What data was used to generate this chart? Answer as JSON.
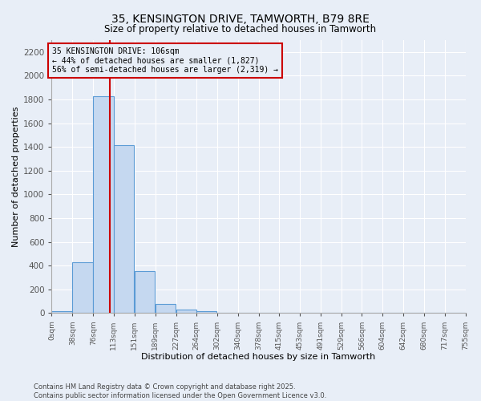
{
  "title": "35, KENSINGTON DRIVE, TAMWORTH, B79 8RE",
  "subtitle": "Size of property relative to detached houses in Tamworth",
  "xlabel": "Distribution of detached houses by size in Tamworth",
  "ylabel": "Number of detached properties",
  "footnote1": "Contains HM Land Registry data © Crown copyright and database right 2025.",
  "footnote2": "Contains public sector information licensed under the Open Government Licence v3.0.",
  "annotation_title": "35 KENSINGTON DRIVE: 106sqm",
  "annotation_line1": "← 44% of detached houses are smaller (1,827)",
  "annotation_line2": "56% of semi-detached houses are larger (2,319) →",
  "property_size": 106,
  "bar_left_edges": [
    0,
    38,
    76,
    113,
    151,
    189,
    227,
    264,
    302,
    340,
    378,
    415,
    453,
    491,
    529,
    566,
    604,
    642,
    680,
    717
  ],
  "bar_heights": [
    15,
    430,
    1830,
    1415,
    355,
    80,
    30,
    15,
    0,
    0,
    0,
    0,
    0,
    0,
    0,
    0,
    0,
    0,
    0,
    0
  ],
  "bin_width": 37,
  "bar_color": "#c5d8f0",
  "bar_edge_color": "#5b9bd5",
  "line_color": "#cc0000",
  "bg_color": "#e8eef7",
  "grid_color": "#ffffff",
  "annotation_box_color": "#cc0000",
  "ylim": [
    0,
    2300
  ],
  "yticks": [
    0,
    200,
    400,
    600,
    800,
    1000,
    1200,
    1400,
    1600,
    1800,
    2000,
    2200
  ],
  "xtick_labels": [
    "0sqm",
    "38sqm",
    "76sqm",
    "113sqm",
    "151sqm",
    "189sqm",
    "227sqm",
    "264sqm",
    "302sqm",
    "340sqm",
    "378sqm",
    "415sqm",
    "453sqm",
    "491sqm",
    "529sqm",
    "566sqm",
    "604sqm",
    "642sqm",
    "680sqm",
    "717sqm",
    "755sqm"
  ]
}
